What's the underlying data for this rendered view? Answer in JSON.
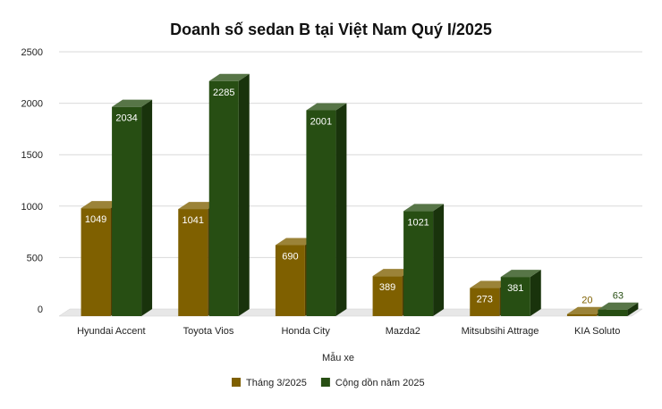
{
  "chart_data": {
    "type": "bar",
    "title": "Doanh số sedan B tại Việt Nam Quý I/2025",
    "xlabel": "Mẫu xe",
    "ylabel": "",
    "ylim": [
      0,
      2500
    ],
    "yticks": [
      0,
      500,
      1000,
      1500,
      2000,
      2500
    ],
    "grid": true,
    "legend_position": "bottom",
    "categories": [
      "Hyundai Accent",
      "Toyota Vios",
      "Honda City",
      "Mazda2",
      "Mitsubsihi Attrage",
      "KIA Soluto"
    ],
    "series": [
      {
        "name": "Tháng 3/2025",
        "color": "#7f6000",
        "values": [
          1049,
          1041,
          690,
          389,
          273,
          20
        ]
      },
      {
        "name": "Cộng dồn năm 2025",
        "color": "#274e13",
        "values": [
          2034,
          2285,
          2001,
          1021,
          381,
          63
        ]
      }
    ]
  }
}
